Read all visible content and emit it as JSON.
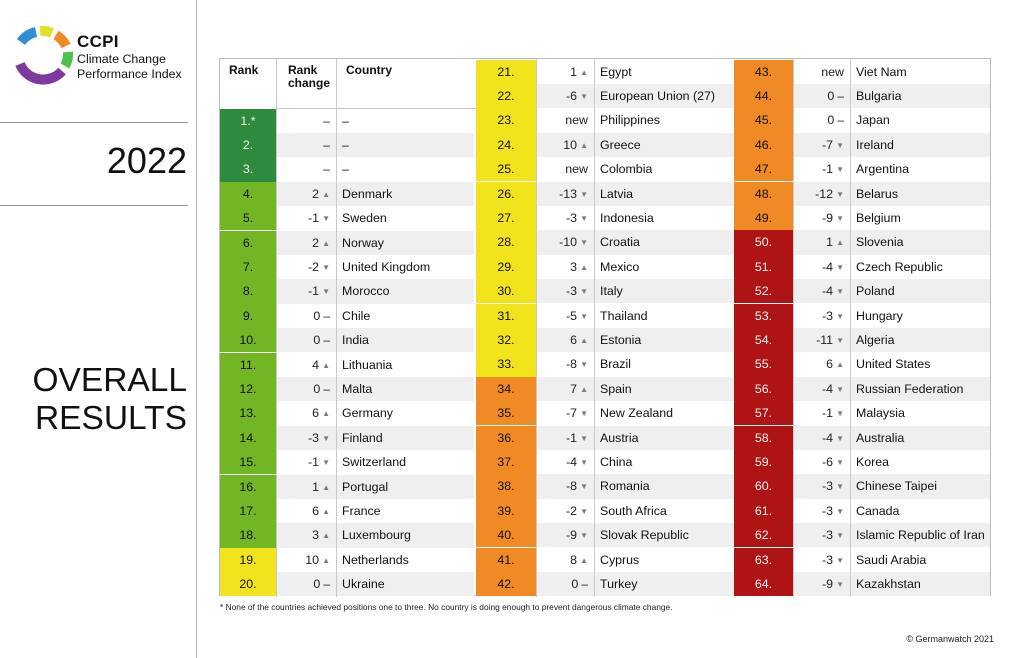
{
  "logo": {
    "icon": "ccpi-ring-logo",
    "title": "CCPI",
    "subtitle_line1": "Climate Change",
    "subtitle_line2": "Performance Index",
    "colors": [
      "#2e8fd6",
      "#e2e02a",
      "#f08a24",
      "#4bc24b",
      "#7c3a9e"
    ]
  },
  "year": "2022",
  "heading_line1": "OVERALL",
  "heading_line2": "RESULTS",
  "table": {
    "headers": {
      "rank": "Rank",
      "rank_change_line1": "Rank",
      "rank_change_line2": "change",
      "country": "Country"
    },
    "colors": {
      "green_dark": "#2e8b3d",
      "green": "#72b626",
      "yellow": "#f2e41c",
      "orange": "#f08a24",
      "red": "#ae1414"
    },
    "rows": [
      {
        "rank": "1.*",
        "change": "–",
        "dir": "",
        "country": "–",
        "color": "green_dark"
      },
      {
        "rank": "2.",
        "change": "–",
        "dir": "",
        "country": "–",
        "color": "green_dark"
      },
      {
        "rank": "3.",
        "change": "–",
        "dir": "",
        "country": "–",
        "color": "green_dark"
      },
      {
        "rank": "4.",
        "change": "2",
        "dir": "up",
        "country": "Denmark",
        "color": "green"
      },
      {
        "rank": "5.",
        "change": "-1",
        "dir": "down",
        "country": "Sweden",
        "color": "green"
      },
      {
        "rank": "6.",
        "change": "2",
        "dir": "up",
        "country": "Norway",
        "color": "green"
      },
      {
        "rank": "7.",
        "change": "-2",
        "dir": "down",
        "country": "United Kingdom",
        "color": "green"
      },
      {
        "rank": "8.",
        "change": "-1",
        "dir": "down",
        "country": "Morocco",
        "color": "green"
      },
      {
        "rank": "9.",
        "change": "0",
        "dir": "same",
        "country": "Chile",
        "color": "green"
      },
      {
        "rank": "10.",
        "change": "0",
        "dir": "same",
        "country": "India",
        "color": "green"
      },
      {
        "rank": "11.",
        "change": "4",
        "dir": "up",
        "country": "Lithuania",
        "color": "green"
      },
      {
        "rank": "12.",
        "change": "0",
        "dir": "same",
        "country": "Malta",
        "color": "green"
      },
      {
        "rank": "13.",
        "change": "6",
        "dir": "up",
        "country": "Germany",
        "color": "green"
      },
      {
        "rank": "14.",
        "change": "-3",
        "dir": "down",
        "country": "Finland",
        "color": "green"
      },
      {
        "rank": "15.",
        "change": "-1",
        "dir": "down",
        "country": "Switzerland",
        "color": "green"
      },
      {
        "rank": "16.",
        "change": "1",
        "dir": "up",
        "country": "Portugal",
        "color": "green"
      },
      {
        "rank": "17.",
        "change": "6",
        "dir": "up",
        "country": "France",
        "color": "green"
      },
      {
        "rank": "18.",
        "change": "3",
        "dir": "up",
        "country": "Luxembourg",
        "color": "green"
      },
      {
        "rank": "19.",
        "change": "10",
        "dir": "up",
        "country": "Netherlands",
        "color": "yellow"
      },
      {
        "rank": "20.",
        "change": "0",
        "dir": "same",
        "country": "Ukraine",
        "color": "yellow"
      },
      {
        "rank": "21.",
        "change": "1",
        "dir": "up",
        "country": "Egypt",
        "color": "yellow"
      },
      {
        "rank": "22.",
        "change": "-6",
        "dir": "down",
        "country": "European Union (27)",
        "color": "yellow"
      },
      {
        "rank": "23.",
        "change": "new",
        "dir": "",
        "country": "Philippines",
        "color": "yellow"
      },
      {
        "rank": "24.",
        "change": "10",
        "dir": "up",
        "country": "Greece",
        "color": "yellow"
      },
      {
        "rank": "25.",
        "change": "new",
        "dir": "",
        "country": "Colombia",
        "color": "yellow"
      },
      {
        "rank": "26.",
        "change": "-13",
        "dir": "down",
        "country": "Latvia",
        "color": "yellow"
      },
      {
        "rank": "27.",
        "change": "-3",
        "dir": "down",
        "country": "Indonesia",
        "color": "yellow"
      },
      {
        "rank": "28.",
        "change": "-10",
        "dir": "down",
        "country": "Croatia",
        "color": "yellow"
      },
      {
        "rank": "29.",
        "change": "3",
        "dir": "up",
        "country": "Mexico",
        "color": "yellow"
      },
      {
        "rank": "30.",
        "change": "-3",
        "dir": "down",
        "country": "Italy",
        "color": "yellow"
      },
      {
        "rank": "31.",
        "change": "-5",
        "dir": "down",
        "country": "Thailand",
        "color": "yellow"
      },
      {
        "rank": "32.",
        "change": "6",
        "dir": "up",
        "country": "Estonia",
        "color": "yellow"
      },
      {
        "rank": "33.",
        "change": "-8",
        "dir": "down",
        "country": "Brazil",
        "color": "yellow"
      },
      {
        "rank": "34.",
        "change": "7",
        "dir": "up",
        "country": "Spain",
        "color": "orange"
      },
      {
        "rank": "35.",
        "change": "-7",
        "dir": "down",
        "country": "New Zealand",
        "color": "orange"
      },
      {
        "rank": "36.",
        "change": "-1",
        "dir": "down",
        "country": "Austria",
        "color": "orange"
      },
      {
        "rank": "37.",
        "change": "-4",
        "dir": "down",
        "country": "China",
        "color": "orange"
      },
      {
        "rank": "38.",
        "change": "-8",
        "dir": "down",
        "country": "Romania",
        "color": "orange"
      },
      {
        "rank": "39.",
        "change": "-2",
        "dir": "down",
        "country": "South Africa",
        "color": "orange"
      },
      {
        "rank": "40.",
        "change": "-9",
        "dir": "down",
        "country": "Slovak Republic",
        "color": "orange"
      },
      {
        "rank": "41.",
        "change": "8",
        "dir": "up",
        "country": "Cyprus",
        "color": "orange"
      },
      {
        "rank": "42.",
        "change": "0",
        "dir": "same",
        "country": "Turkey",
        "color": "orange"
      },
      {
        "rank": "43.",
        "change": "new",
        "dir": "",
        "country": "Viet Nam",
        "color": "orange"
      },
      {
        "rank": "44.",
        "change": "0",
        "dir": "same",
        "country": "Bulgaria",
        "color": "orange"
      },
      {
        "rank": "45.",
        "change": "0",
        "dir": "same",
        "country": "Japan",
        "color": "orange"
      },
      {
        "rank": "46.",
        "change": "-7",
        "dir": "down",
        "country": "Ireland",
        "color": "orange"
      },
      {
        "rank": "47.",
        "change": "-1",
        "dir": "down",
        "country": "Argentina",
        "color": "orange"
      },
      {
        "rank": "48.",
        "change": "-12",
        "dir": "down",
        "country": "Belarus",
        "color": "orange"
      },
      {
        "rank": "49.",
        "change": "-9",
        "dir": "down",
        "country": "Belgium",
        "color": "orange"
      },
      {
        "rank": "50.",
        "change": "1",
        "dir": "up",
        "country": "Slovenia",
        "color": "red"
      },
      {
        "rank": "51.",
        "change": "-4",
        "dir": "down",
        "country": "Czech Republic",
        "color": "red"
      },
      {
        "rank": "52.",
        "change": "-4",
        "dir": "down",
        "country": "Poland",
        "color": "red"
      },
      {
        "rank": "53.",
        "change": "-3",
        "dir": "down",
        "country": "Hungary",
        "color": "red"
      },
      {
        "rank": "54.",
        "change": "-11",
        "dir": "down",
        "country": "Algeria",
        "color": "red"
      },
      {
        "rank": "55.",
        "change": "6",
        "dir": "up",
        "country": "United States",
        "color": "red"
      },
      {
        "rank": "56.",
        "change": "-4",
        "dir": "down",
        "country": "Russian Federation",
        "color": "red"
      },
      {
        "rank": "57.",
        "change": "-1",
        "dir": "down",
        "country": "Malaysia",
        "color": "red"
      },
      {
        "rank": "58.",
        "change": "-4",
        "dir": "down",
        "country": "Australia",
        "color": "red"
      },
      {
        "rank": "59.",
        "change": "-6",
        "dir": "down",
        "country": "Korea",
        "color": "red"
      },
      {
        "rank": "60.",
        "change": "-3",
        "dir": "down",
        "country": "Chinese Taipei",
        "color": "red"
      },
      {
        "rank": "61.",
        "change": "-3",
        "dir": "down",
        "country": "Canada",
        "color": "red"
      },
      {
        "rank": "62.",
        "change": "-3",
        "dir": "down",
        "country": "Islamic Republic of Iran",
        "color": "red"
      },
      {
        "rank": "63.",
        "change": "-3",
        "dir": "down",
        "country": "Saudi Arabia",
        "color": "red"
      },
      {
        "rank": "64.",
        "change": "-9",
        "dir": "down",
        "country": "Kazakhstan",
        "color": "red"
      }
    ]
  },
  "footnote": "* None of the countries achieved positions one to three. No country is doing enough to prevent dangerous climate change.",
  "copyright": "© Germanwatch 2021"
}
